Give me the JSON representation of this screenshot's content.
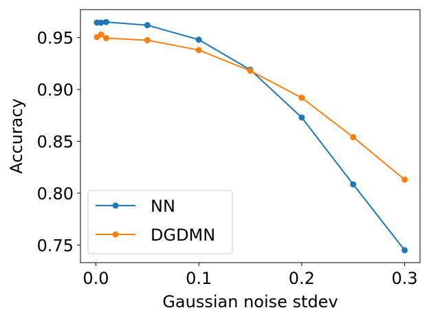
{
  "chart_data": {
    "type": "line",
    "xlabel": "Gaussian noise stdev",
    "ylabel": "Accuracy",
    "xlim": [
      -0.015,
      0.315
    ],
    "ylim": [
      0.733,
      0.977
    ],
    "xticks": [
      0.0,
      0.1,
      0.2,
      0.3
    ],
    "xtick_labels": [
      "0.0",
      "0.1",
      "0.2",
      "0.3"
    ],
    "yticks": [
      0.75,
      0.8,
      0.85,
      0.9,
      0.95
    ],
    "ytick_labels": [
      "0.75",
      "0.80",
      "0.85",
      "0.90",
      "0.95"
    ],
    "grid": false,
    "legend_position": "bottom-left",
    "x": [
      0.001,
      0.005,
      0.01,
      0.05,
      0.1,
      0.15,
      0.2,
      0.25,
      0.3
    ],
    "series": [
      {
        "name": "NN",
        "color": "#1f77b4",
        "values": [
          0.9645,
          0.9645,
          0.965,
          0.962,
          0.948,
          0.919,
          0.873,
          0.8085,
          0.745
        ]
      },
      {
        "name": "DGDMN",
        "color": "#ff7f0e",
        "values": [
          0.9505,
          0.953,
          0.9495,
          0.9475,
          0.938,
          0.918,
          0.892,
          0.854,
          0.813
        ]
      }
    ]
  }
}
